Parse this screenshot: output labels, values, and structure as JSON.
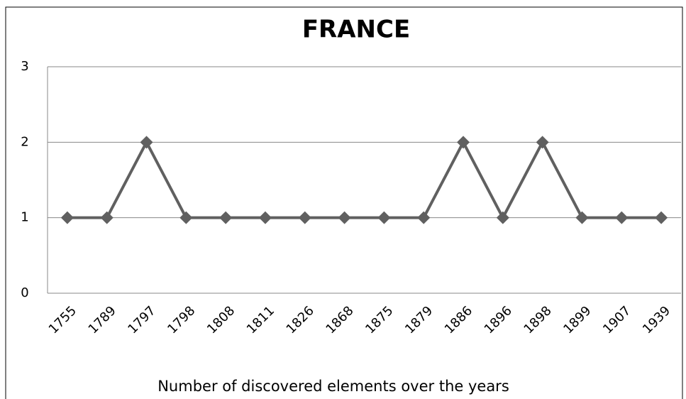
{
  "chart_data": {
    "type": "line",
    "title": "FRANCE",
    "x_label": "Number of discovered elements over the years",
    "categories": [
      "1755",
      "1789",
      "1797",
      "1798",
      "1808",
      "1811",
      "1826",
      "1868",
      "1875",
      "1879",
      "1886",
      "1896",
      "1898",
      "1899",
      "1907",
      "1939"
    ],
    "values": [
      1,
      1,
      2,
      1,
      1,
      1,
      1,
      1,
      1,
      1,
      2,
      1,
      2,
      1,
      1,
      1
    ],
    "color": "#606060",
    "ylim": [
      0,
      3
    ],
    "yticks": [
      0,
      1,
      2,
      3
    ],
    "grid": true
  }
}
